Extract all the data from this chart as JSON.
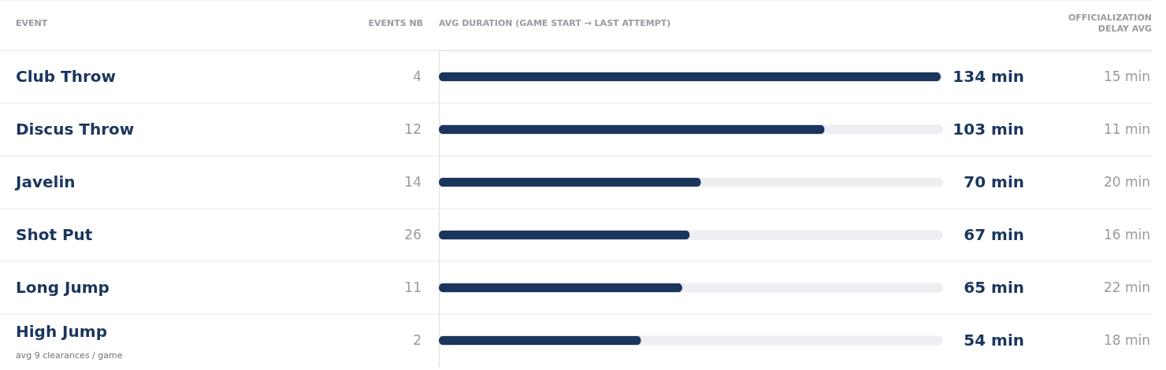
{
  "chart_data": [
    {
      "type": "bar",
      "orientation": "horizontal",
      "title": "AVG DURATION (GAME START → LAST ATTEMPT)",
      "ylabel": "EVENT",
      "categories": [
        "Club Throw",
        "Discus Throw",
        "Javelin",
        "Shot Put",
        "Long Jump",
        "High Jump"
      ],
      "values": [
        134,
        103,
        70,
        67,
        65,
        54
      ],
      "value_labels": [
        "134 min",
        "103 min",
        "70 min",
        "67 min",
        "65 min",
        "54 min"
      ],
      "color": "#1b365d",
      "grid": "y",
      "annotations": [
        "avg 9 clearances / game"
      ]
    },
    {
      "type": "other",
      "title": "EVENTS NB",
      "values": [
        4,
        12,
        14,
        26,
        11,
        2
      ],
      "data_labels": true
    },
    {
      "type": "other",
      "title": "OFFICIALIZATION DELAY AVG",
      "values": [
        15,
        11,
        20,
        16,
        22,
        18
      ],
      "value_labels": [
        "15 min",
        "11 min",
        "20 min",
        "16 min",
        "22 min",
        "18 min"
      ]
    }
  ]
}
